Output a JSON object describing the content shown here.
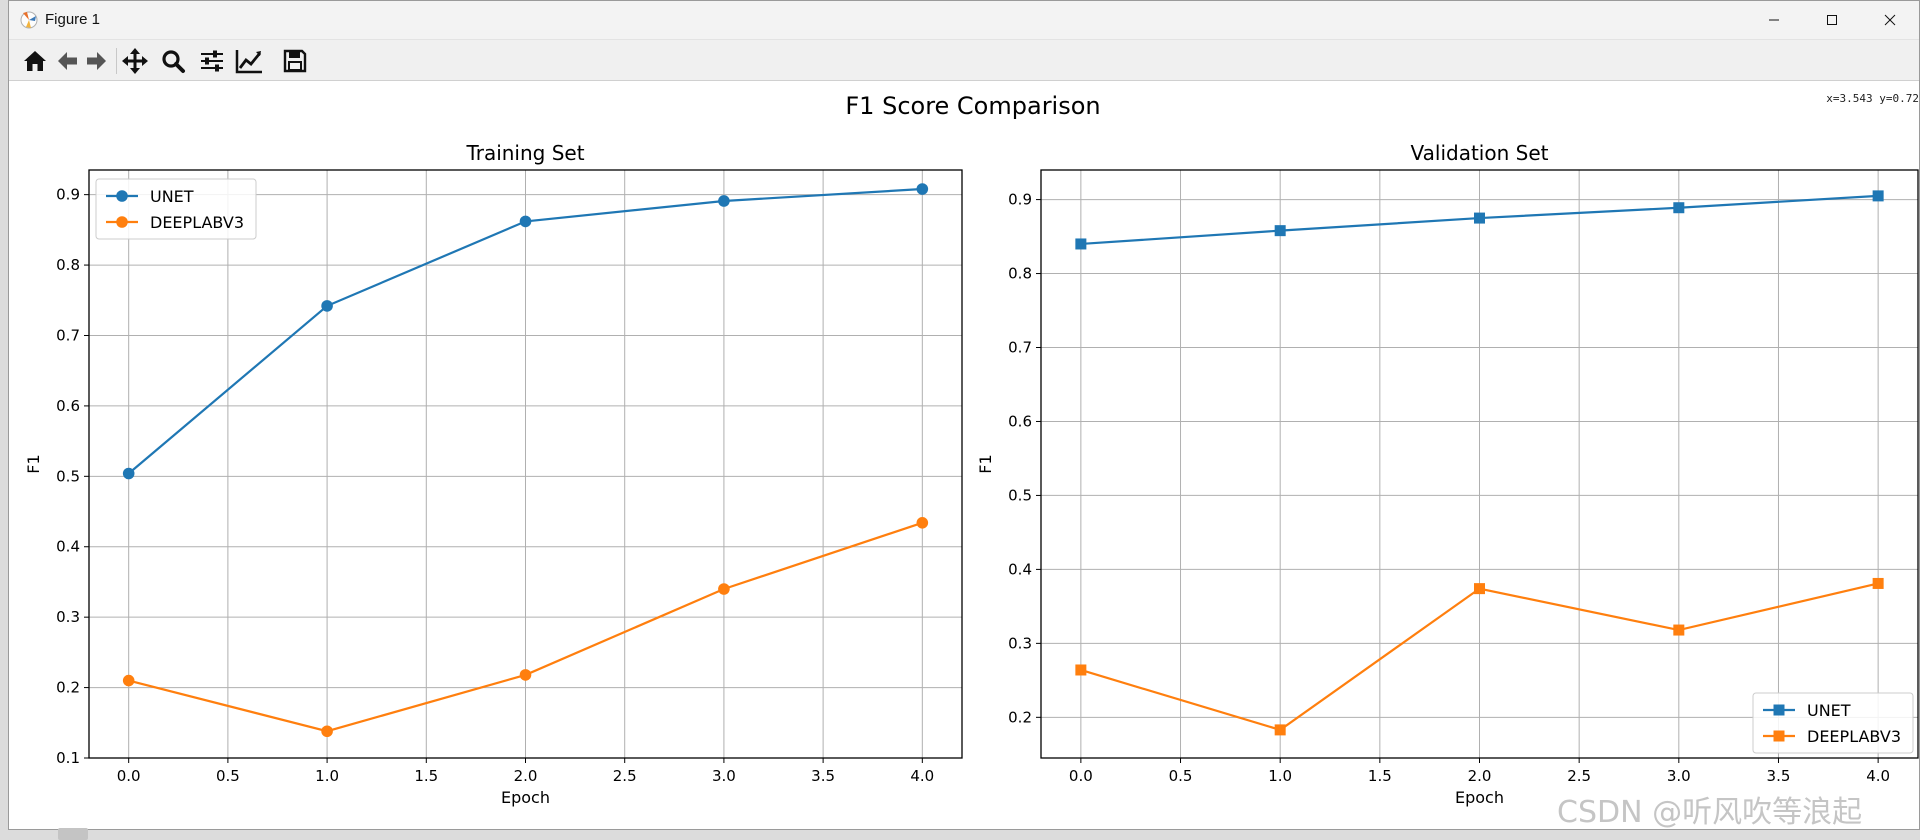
{
  "window": {
    "title": "Figure 1",
    "controls": [
      "minimize",
      "maximize",
      "close"
    ]
  },
  "toolbar": {
    "tools": [
      {
        "name": "home-icon",
        "tip": "Reset original view"
      },
      {
        "name": "back-icon",
        "tip": "Back to previous view"
      },
      {
        "name": "forward-icon",
        "tip": "Forward to next view"
      },
      {
        "name": "move-icon",
        "tip": "Pan axes"
      },
      {
        "name": "zoom-icon",
        "tip": "Zoom to rectangle"
      },
      {
        "name": "sliders-icon",
        "tip": "Configure subplots"
      },
      {
        "name": "chart-line-icon",
        "tip": "Edit axis, curve and image parameters"
      },
      {
        "name": "save-icon",
        "tip": "Save the figure"
      }
    ],
    "coords": "x=3.543 y=0.72"
  },
  "watermark": "CSDN @听风吹等浪起",
  "chart_data": {
    "suptitle": "F1 Score Comparison",
    "charts": [
      {
        "type": "line",
        "title": "Training Set",
        "xlabel": "Epoch",
        "ylabel": "F1",
        "xlim": [
          -0.2,
          4.2
        ],
        "ylim": [
          0.1,
          0.935
        ],
        "xticks": [
          0.0,
          0.5,
          1.0,
          1.5,
          2.0,
          2.5,
          3.0,
          3.5,
          4.0
        ],
        "yticks": [
          0.1,
          0.2,
          0.3,
          0.4,
          0.5,
          0.6,
          0.7,
          0.8,
          0.9
        ],
        "grid": true,
        "legend": "top-left",
        "marker": "circle",
        "x": [
          0,
          1,
          2,
          3,
          4
        ],
        "series": [
          {
            "name": "UNET",
            "color": "#1f77b4",
            "values": [
              0.504,
              0.742,
              0.862,
              0.891,
              0.908
            ]
          },
          {
            "name": "DEEPLABV3",
            "color": "#ff7f0e",
            "values": [
              0.21,
              0.138,
              0.218,
              0.34,
              0.434
            ]
          }
        ]
      },
      {
        "type": "line",
        "title": "Validation Set",
        "xlabel": "Epoch",
        "ylabel": "F1",
        "xlim": [
          -0.2,
          4.2
        ],
        "ylim": [
          0.145,
          0.94
        ],
        "xticks": [
          0.0,
          0.5,
          1.0,
          1.5,
          2.0,
          2.5,
          3.0,
          3.5,
          4.0
        ],
        "yticks": [
          0.2,
          0.3,
          0.4,
          0.5,
          0.6,
          0.7,
          0.8,
          0.9
        ],
        "grid": true,
        "legend": "bottom-right",
        "marker": "square",
        "x": [
          0,
          1,
          2,
          3,
          4
        ],
        "series": [
          {
            "name": "UNET",
            "color": "#1f77b4",
            "values": [
              0.84,
              0.858,
              0.875,
              0.889,
              0.905
            ]
          },
          {
            "name": "DEEPLABV3",
            "color": "#ff7f0e",
            "values": [
              0.264,
              0.183,
              0.374,
              0.318,
              0.381
            ]
          }
        ]
      }
    ]
  }
}
